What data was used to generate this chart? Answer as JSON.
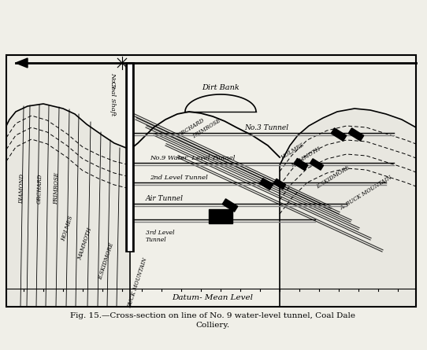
{
  "title_line1": "Fig. 15.—Cross-section on line of No. 9 water-level tunnel, Coal Dale",
  "title_line2": "Colliery.",
  "datum_label": "Datum- Mean Level",
  "background_color": "#f0efe8",
  "figure_size": [
    5.42,
    4.45
  ],
  "dpi": 100,
  "shaft_label_line1": "No.9",
  "shaft_label_line2": "Coal Shaft",
  "dirt_bank_label": "Dirt Bank",
  "tunnel_no3": "No.3 Tunnel",
  "tunnel_no9": "No.9 Water  Level Tunnel",
  "tunnel_2nd": "2nd Level Tunnel",
  "tunnel_air": "Air Tunnel",
  "tunnel_3rd": "3rd Level\nTunnel",
  "left_labels": [
    "DIAMOND",
    "ORCHARD",
    "PRIMROSE"
  ],
  "lower_left_labels": [
    "HOLMES",
    "MAMMOTH",
    "E.SKIDMORE",
    "BUCK MOUNTAIN"
  ],
  "upper_right_labels": [
    "ORCHARD",
    "PRIMROSE"
  ],
  "mid_right_labels": [
    "HOLMES",
    "MAMMOTH"
  ],
  "lower_right_labels": [
    "E.SKIDMORE",
    "A. BUCK MOUNTAIN"
  ]
}
